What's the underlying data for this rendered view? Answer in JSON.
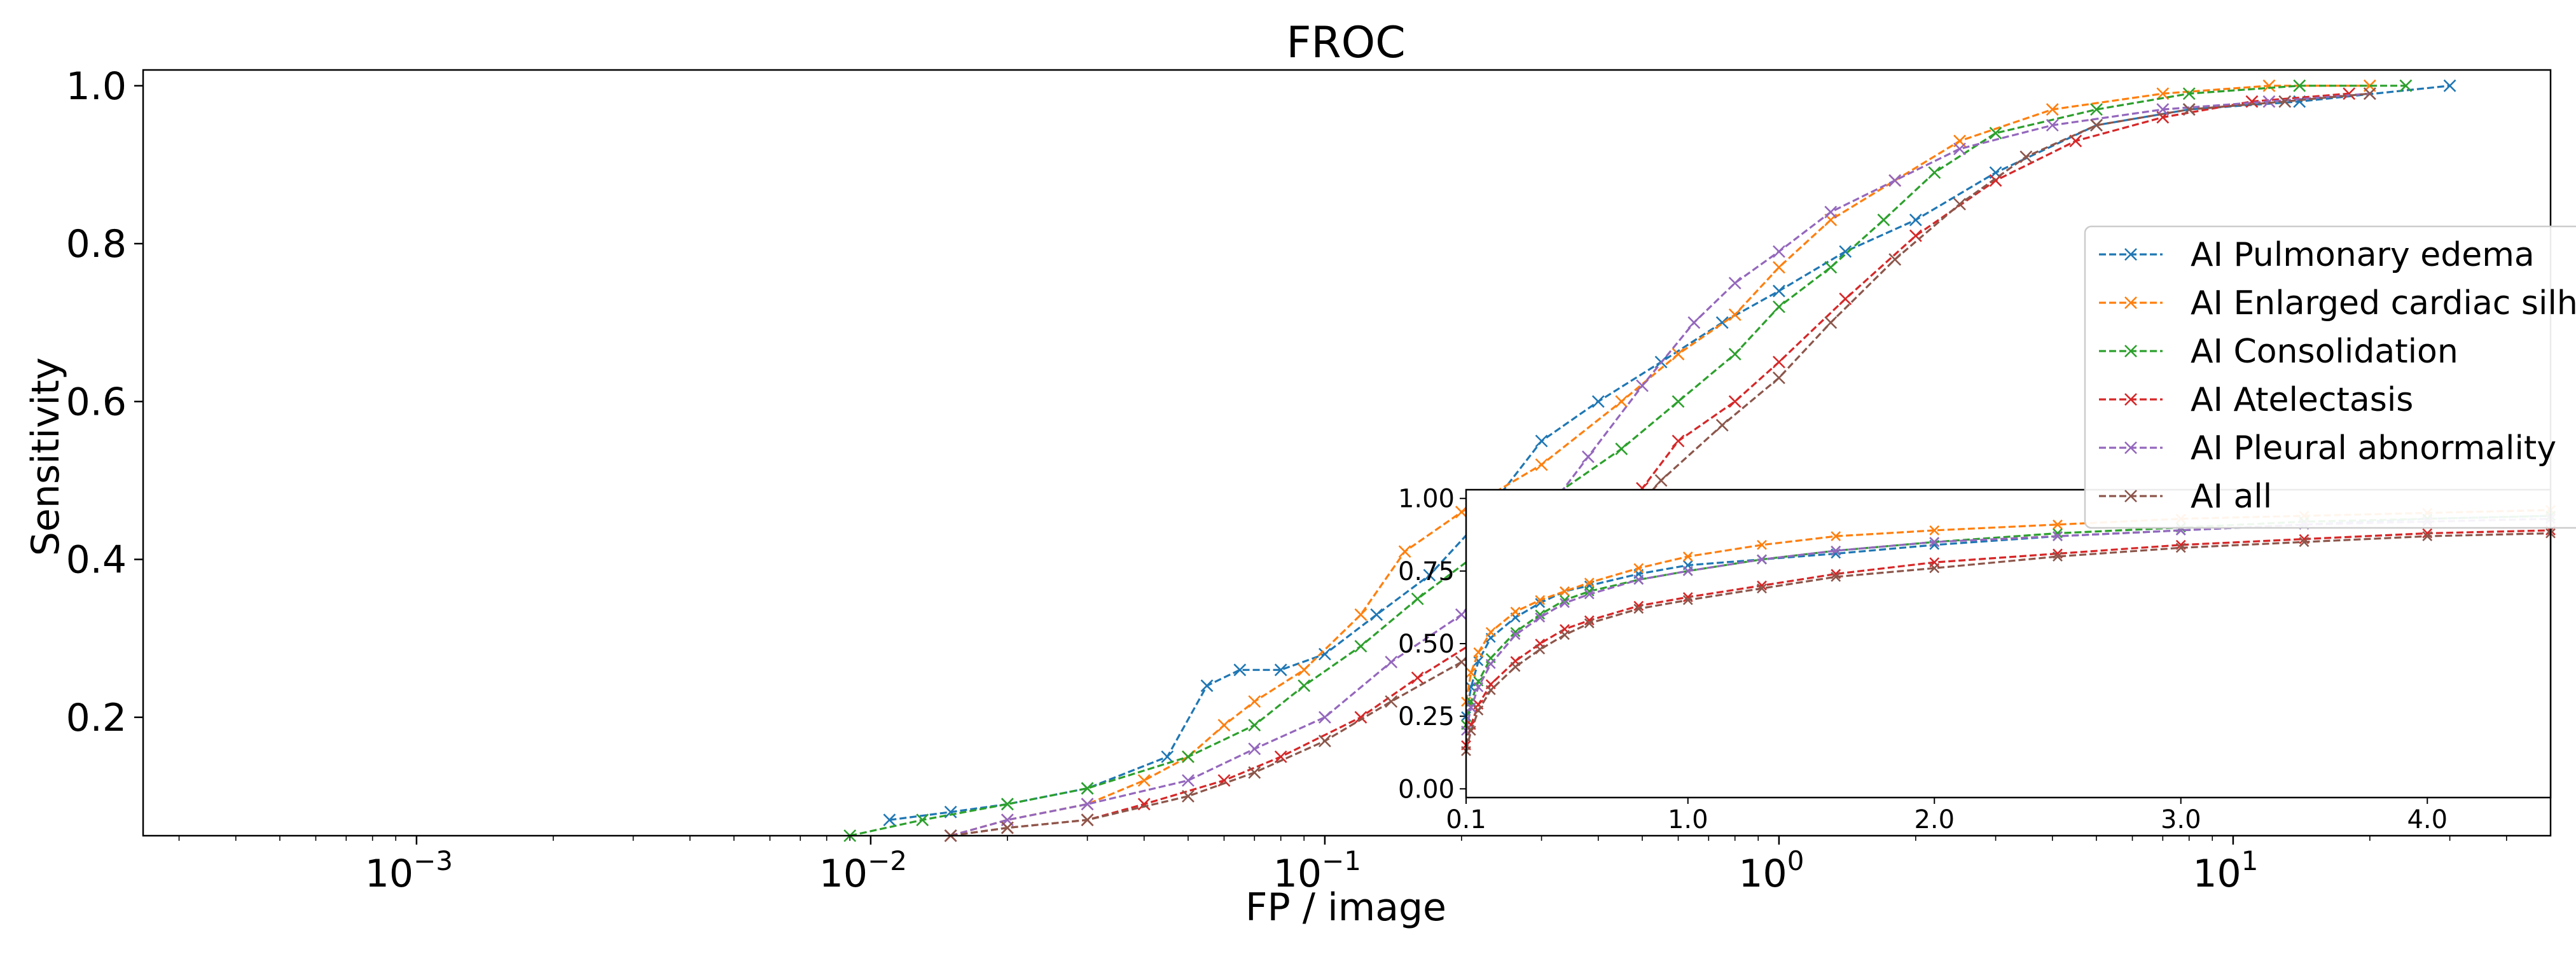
{
  "chart_data": [
    {
      "type": "line",
      "title": "FROC",
      "xlabel": "FP / image",
      "ylabel": "Sensitivity",
      "xscale": "log",
      "xlim": [
        0.00025,
        50
      ],
      "ylim": [
        0.05,
        1.02
      ],
      "xticks": [
        {
          "value": 0.001,
          "base": "10",
          "exp": "−3"
        },
        {
          "value": 0.01,
          "base": "10",
          "exp": "−2"
        },
        {
          "value": 0.1,
          "base": "10",
          "exp": "−1"
        },
        {
          "value": 1,
          "base": "10",
          "exp": "0"
        },
        {
          "value": 10,
          "base": "10",
          "exp": "1"
        }
      ],
      "yticks": [
        "0.2",
        "0.4",
        "0.6",
        "0.8",
        "1.0"
      ],
      "grid": false,
      "legend": "right, partially cut off",
      "marker": "x",
      "linestyle": "dashed",
      "series": [
        {
          "name": "AI Pulmonary edema",
          "color": "#1f77b4",
          "x": [
            0.011,
            0.015,
            0.02,
            0.03,
            0.045,
            0.055,
            0.065,
            0.08,
            0.1,
            0.13,
            0.17,
            0.22,
            0.3,
            0.4,
            0.55,
            0.75,
            1.0,
            1.4,
            2.0,
            3.0,
            5.0,
            8.0,
            14.0,
            30.0
          ],
          "y": [
            0.07,
            0.08,
            0.09,
            0.11,
            0.15,
            0.24,
            0.26,
            0.26,
            0.28,
            0.33,
            0.38,
            0.45,
            0.55,
            0.6,
            0.65,
            0.7,
            0.74,
            0.79,
            0.83,
            0.89,
            0.95,
            0.97,
            0.98,
            1.0
          ]
        },
        {
          "name": "AI Enlarged cardiac silh",
          "color": "#ff7f0e",
          "x": [
            0.015,
            0.02,
            0.03,
            0.04,
            0.05,
            0.06,
            0.07,
            0.09,
            0.12,
            0.15,
            0.2,
            0.3,
            0.45,
            0.6,
            0.8,
            1.0,
            1.3,
            1.8,
            2.5,
            4.0,
            7.0,
            12.0,
            20.0
          ],
          "y": [
            0.05,
            0.07,
            0.09,
            0.12,
            0.15,
            0.19,
            0.22,
            0.26,
            0.33,
            0.41,
            0.46,
            0.52,
            0.6,
            0.66,
            0.71,
            0.77,
            0.83,
            0.88,
            0.93,
            0.97,
            0.99,
            1.0,
            1.0
          ]
        },
        {
          "name": "AI Consolidation",
          "color": "#2ca02c",
          "x": [
            0.009,
            0.013,
            0.02,
            0.03,
            0.05,
            0.07,
            0.09,
            0.12,
            0.16,
            0.22,
            0.3,
            0.45,
            0.6,
            0.8,
            1.0,
            1.3,
            1.7,
            2.2,
            3.0,
            5.0,
            8.0,
            14.0,
            24.0
          ],
          "y": [
            0.05,
            0.07,
            0.09,
            0.11,
            0.15,
            0.19,
            0.24,
            0.29,
            0.35,
            0.41,
            0.47,
            0.54,
            0.6,
            0.66,
            0.72,
            0.77,
            0.83,
            0.89,
            0.94,
            0.97,
            0.99,
            1.0,
            1.0
          ]
        },
        {
          "name": "AI Atelectasis",
          "color": "#d62728",
          "x": [
            0.015,
            0.02,
            0.03,
            0.04,
            0.06,
            0.08,
            0.12,
            0.16,
            0.22,
            0.3,
            0.4,
            0.5,
            0.6,
            0.8,
            1.0,
            1.4,
            2.0,
            3.0,
            4.5,
            7.0,
            11.0,
            18.0
          ],
          "y": [
            0.05,
            0.06,
            0.07,
            0.09,
            0.12,
            0.15,
            0.2,
            0.25,
            0.3,
            0.36,
            0.42,
            0.49,
            0.55,
            0.6,
            0.65,
            0.73,
            0.81,
            0.88,
            0.93,
            0.96,
            0.98,
            0.99
          ]
        },
        {
          "name": "AI Pleural abnormality",
          "color": "#9467bd",
          "x": [
            0.015,
            0.02,
            0.03,
            0.05,
            0.07,
            0.1,
            0.14,
            0.2,
            0.28,
            0.38,
            0.5,
            0.65,
            0.8,
            1.0,
            1.3,
            1.8,
            2.5,
            4.0,
            7.0,
            12.0,
            20.0
          ],
          "y": [
            0.05,
            0.07,
            0.09,
            0.12,
            0.16,
            0.2,
            0.27,
            0.33,
            0.43,
            0.53,
            0.62,
            0.7,
            0.75,
            0.79,
            0.84,
            0.88,
            0.92,
            0.95,
            0.97,
            0.98,
            0.99
          ]
        },
        {
          "name": "AI all",
          "color": "#8c564b",
          "x": [
            0.015,
            0.02,
            0.03,
            0.05,
            0.07,
            0.1,
            0.14,
            0.2,
            0.28,
            0.4,
            0.55,
            0.75,
            1.0,
            1.3,
            1.8,
            2.5,
            3.5,
            5.0,
            8.0,
            13.0,
            20.0
          ],
          "y": [
            0.05,
            0.06,
            0.07,
            0.1,
            0.13,
            0.17,
            0.22,
            0.27,
            0.33,
            0.41,
            0.5,
            0.57,
            0.63,
            0.7,
            0.78,
            0.85,
            0.91,
            0.95,
            0.97,
            0.98,
            0.99
          ]
        }
      ],
      "legend_entries": [
        {
          "label": "AI Pulmonary edema",
          "color": "#1f77b4"
        },
        {
          "label": "AI Enlarged cardiac silh",
          "color": "#ff7f0e"
        },
        {
          "label": "AI Consolidation",
          "color": "#2ca02c"
        },
        {
          "label": "AI Atelectasis",
          "color": "#d62728"
        },
        {
          "label": "AI Pleural abnormality",
          "color": "#9467bd"
        },
        {
          "label": "AI all",
          "color": "#8c564b"
        }
      ]
    },
    {
      "type": "line",
      "role": "inset",
      "xlim": [
        0.1,
        4.5
      ],
      "ylim": [
        -0.03,
        1.03
      ],
      "xticks": [
        "0.1",
        "1.0",
        "2.0",
        "3.0",
        "4.0"
      ],
      "yticks": [
        "0.00",
        "0.25",
        "0.50",
        "0.75",
        "1.00"
      ],
      "grid": false,
      "marker": "x",
      "linestyle": "dashed",
      "series": [
        {
          "name": "AI Pulmonary edema",
          "color": "#1f77b4",
          "x": [
            0.1,
            0.12,
            0.15,
            0.2,
            0.3,
            0.4,
            0.5,
            0.6,
            0.8,
            1.0,
            1.3,
            1.6,
            2.0,
            2.5,
            3.0,
            3.5,
            4.0,
            4.5
          ],
          "y": [
            0.25,
            0.35,
            0.44,
            0.52,
            0.59,
            0.64,
            0.68,
            0.7,
            0.74,
            0.77,
            0.79,
            0.81,
            0.84,
            0.87,
            0.89,
            0.91,
            0.93,
            0.94
          ]
        },
        {
          "name": "AI Enlarged cardiac silh",
          "color": "#ff7f0e",
          "x": [
            0.1,
            0.12,
            0.15,
            0.2,
            0.3,
            0.4,
            0.5,
            0.6,
            0.8,
            1.0,
            1.3,
            1.6,
            2.0,
            2.5,
            3.0,
            3.5,
            4.0,
            4.5
          ],
          "y": [
            0.3,
            0.4,
            0.47,
            0.54,
            0.61,
            0.65,
            0.68,
            0.71,
            0.76,
            0.8,
            0.84,
            0.87,
            0.89,
            0.91,
            0.93,
            0.94,
            0.95,
            0.96
          ]
        },
        {
          "name": "AI Consolidation",
          "color": "#2ca02c",
          "x": [
            0.1,
            0.12,
            0.15,
            0.2,
            0.3,
            0.4,
            0.5,
            0.6,
            0.8,
            1.0,
            1.3,
            1.6,
            2.0,
            2.5,
            3.0,
            3.5,
            4.0,
            4.5
          ],
          "y": [
            0.22,
            0.3,
            0.37,
            0.45,
            0.54,
            0.6,
            0.65,
            0.68,
            0.72,
            0.75,
            0.79,
            0.82,
            0.85,
            0.88,
            0.9,
            0.92,
            0.93,
            0.94
          ]
        },
        {
          "name": "AI Atelectasis",
          "color": "#d62728",
          "x": [
            0.1,
            0.12,
            0.15,
            0.2,
            0.3,
            0.4,
            0.5,
            0.6,
            0.8,
            1.0,
            1.3,
            1.6,
            2.0,
            2.5,
            3.0,
            3.5,
            4.0,
            4.5
          ],
          "y": [
            0.15,
            0.22,
            0.29,
            0.36,
            0.44,
            0.5,
            0.55,
            0.58,
            0.63,
            0.66,
            0.7,
            0.74,
            0.78,
            0.81,
            0.84,
            0.86,
            0.88,
            0.89
          ]
        },
        {
          "name": "AI Pleural abnormality",
          "color": "#9467bd",
          "x": [
            0.1,
            0.12,
            0.15,
            0.2,
            0.3,
            0.4,
            0.5,
            0.6,
            0.8,
            1.0,
            1.3,
            1.6,
            2.0,
            2.5,
            3.0,
            3.5,
            4.0,
            4.5
          ],
          "y": [
            0.2,
            0.28,
            0.35,
            0.43,
            0.53,
            0.59,
            0.64,
            0.67,
            0.72,
            0.75,
            0.79,
            0.82,
            0.85,
            0.87,
            0.89,
            0.91,
            0.92,
            0.93
          ]
        },
        {
          "name": "AI all",
          "color": "#8c564b",
          "x": [
            0.1,
            0.12,
            0.15,
            0.2,
            0.3,
            0.4,
            0.5,
            0.6,
            0.8,
            1.0,
            1.3,
            1.6,
            2.0,
            2.5,
            3.0,
            3.5,
            4.0,
            4.5
          ],
          "y": [
            0.13,
            0.2,
            0.27,
            0.34,
            0.42,
            0.48,
            0.53,
            0.57,
            0.62,
            0.65,
            0.69,
            0.73,
            0.76,
            0.8,
            0.83,
            0.85,
            0.87,
            0.88
          ]
        }
      ]
    }
  ]
}
